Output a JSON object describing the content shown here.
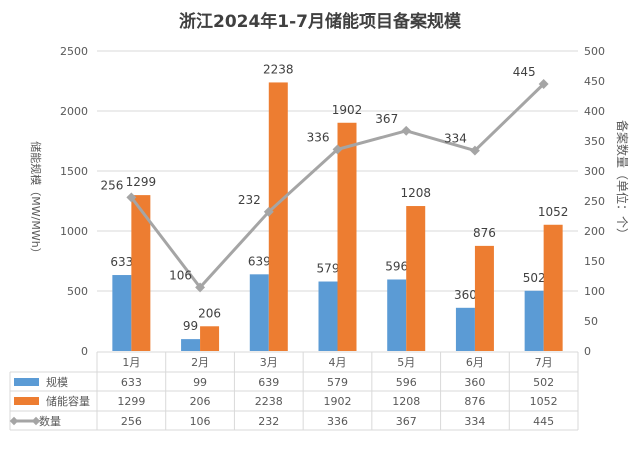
{
  "chart_data": {
    "type": "bar",
    "title": "浙江2024年1-7月储能项目备案规模",
    "categories": [
      "1月",
      "2月",
      "3月",
      "4月",
      "5月",
      "6月",
      "7月"
    ],
    "ylabel": "储能规模（MW/MWh）",
    "y2label": "备案数量（单位：个）",
    "ylim": [
      0,
      2500
    ],
    "y2lim": [
      0,
      500
    ],
    "yticks": [
      0,
      500,
      1000,
      1500,
      2000,
      2500
    ],
    "y2ticks": [
      0,
      50,
      100,
      150,
      200,
      250,
      300,
      350,
      400,
      450,
      500
    ],
    "grid": true,
    "legend": "data-table",
    "series": [
      {
        "name": "规模",
        "type": "bar",
        "axis": "left",
        "color": "#5b9bd5",
        "values": [
          633,
          99,
          639,
          579,
          596,
          360,
          502
        ]
      },
      {
        "name": "储能容量",
        "type": "bar",
        "axis": "left",
        "color": "#ed7d31",
        "values": [
          1299,
          206,
          2238,
          1902,
          1208,
          876,
          1052
        ]
      },
      {
        "name": "数量",
        "type": "line",
        "axis": "right",
        "color": "#a5a5a5",
        "values": [
          256,
          106,
          232,
          336,
          367,
          334,
          445
        ]
      }
    ]
  }
}
